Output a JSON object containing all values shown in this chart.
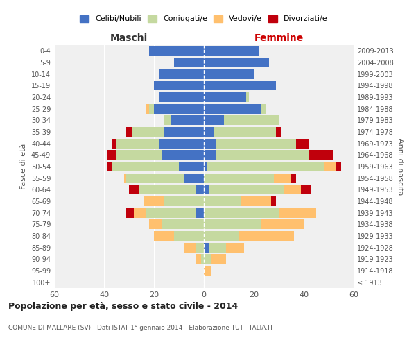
{
  "age_groups": [
    "100+",
    "95-99",
    "90-94",
    "85-89",
    "80-84",
    "75-79",
    "70-74",
    "65-69",
    "60-64",
    "55-59",
    "50-54",
    "45-49",
    "40-44",
    "35-39",
    "30-34",
    "25-29",
    "20-24",
    "15-19",
    "10-14",
    "5-9",
    "0-4"
  ],
  "birth_years": [
    "≤ 1913",
    "1914-1918",
    "1919-1923",
    "1924-1928",
    "1929-1933",
    "1934-1938",
    "1939-1943",
    "1944-1948",
    "1949-1953",
    "1954-1958",
    "1959-1963",
    "1964-1968",
    "1969-1973",
    "1974-1978",
    "1979-1983",
    "1984-1988",
    "1989-1993",
    "1994-1998",
    "1999-2003",
    "2004-2008",
    "2009-2013"
  ],
  "colors": {
    "celibe": "#4472c4",
    "coniugato": "#c5d9a0",
    "vedovo": "#ffc06e",
    "divorziato": "#c0000c"
  },
  "maschi": {
    "celibe": [
      0,
      0,
      0,
      0,
      0,
      0,
      3,
      0,
      3,
      8,
      10,
      17,
      18,
      16,
      13,
      20,
      18,
      20,
      18,
      12,
      22
    ],
    "coniugato": [
      0,
      0,
      1,
      3,
      12,
      17,
      20,
      16,
      23,
      23,
      27,
      18,
      17,
      13,
      3,
      2,
      0,
      0,
      0,
      0,
      0
    ],
    "vedovo": [
      0,
      0,
      2,
      5,
      8,
      5,
      5,
      8,
      0,
      1,
      0,
      0,
      0,
      0,
      0,
      1,
      0,
      0,
      0,
      0,
      0
    ],
    "divorziato": [
      0,
      0,
      0,
      0,
      0,
      0,
      3,
      0,
      4,
      0,
      2,
      4,
      2,
      2,
      0,
      0,
      0,
      0,
      0,
      0,
      0
    ]
  },
  "femmine": {
    "nubile": [
      0,
      0,
      0,
      2,
      0,
      0,
      0,
      0,
      2,
      0,
      1,
      5,
      5,
      4,
      8,
      23,
      17,
      29,
      20,
      26,
      22
    ],
    "coniugata": [
      0,
      0,
      3,
      7,
      14,
      23,
      30,
      15,
      30,
      28,
      47,
      37,
      32,
      25,
      22,
      2,
      1,
      0,
      0,
      0,
      0
    ],
    "vedova": [
      0,
      3,
      6,
      7,
      22,
      17,
      15,
      12,
      7,
      7,
      5,
      0,
      0,
      0,
      0,
      0,
      0,
      0,
      0,
      0,
      0
    ],
    "divorziata": [
      0,
      0,
      0,
      0,
      0,
      0,
      0,
      2,
      4,
      2,
      2,
      10,
      5,
      2,
      0,
      0,
      0,
      0,
      0,
      0,
      0
    ]
  },
  "xlim": 60,
  "title": "Popolazione per età, sesso e stato civile - 2014",
  "subtitle": "COMUNE DI MALLARE (SV) - Dati ISTAT 1° gennaio 2014 - Elaborazione TUTTITALIA.IT",
  "xlabel_left": "Maschi",
  "xlabel_right": "Femmine",
  "ylabel_left": "Fasce di età",
  "ylabel_right": "Anni di nascita",
  "legend_labels": [
    "Celibi/Nubili",
    "Coniugati/e",
    "Vedovi/e",
    "Divorziati/e"
  ],
  "bg_color": "#ffffff",
  "plot_bg": "#f0f0f0",
  "bar_height": 0.85
}
